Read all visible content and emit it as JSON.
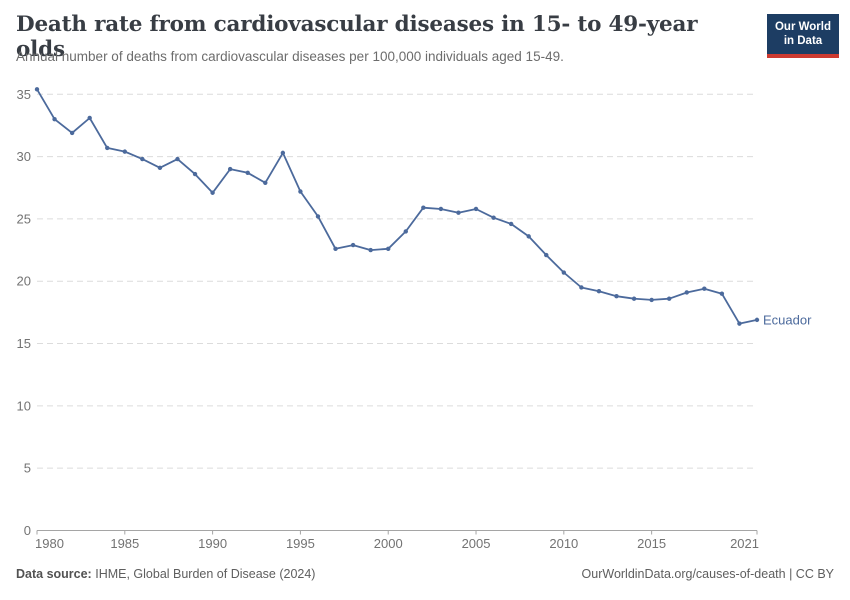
{
  "header": {
    "title": "Death rate from cardiovascular diseases in 15- to 49-year olds",
    "subtitle": "Annual number of deaths from cardiovascular diseases per 100,000 individuals aged 15-49."
  },
  "logo": {
    "line1": "Our World",
    "line2": "in Data",
    "bg_color": "#1d3d63",
    "accent_color": "#cd3a30"
  },
  "chart_data": {
    "type": "line",
    "title": "Death rate from cardiovascular diseases in 15- to 49-year olds",
    "xlabel": "",
    "ylabel": "",
    "xlim": [
      1980,
      2021
    ],
    "ylim": [
      0,
      35
    ],
    "x_ticks": [
      1980,
      1985,
      1990,
      1995,
      2000,
      2005,
      2010,
      2015,
      2021
    ],
    "y_ticks": [
      0,
      5,
      10,
      15,
      20,
      25,
      30,
      35
    ],
    "grid": "horizontal-dashed",
    "legend_position": "end-of-line",
    "x": [
      1980,
      1981,
      1982,
      1983,
      1984,
      1985,
      1986,
      1987,
      1988,
      1989,
      1990,
      1991,
      1992,
      1993,
      1994,
      1995,
      1996,
      1997,
      1998,
      1999,
      2000,
      2001,
      2002,
      2003,
      2004,
      2005,
      2006,
      2007,
      2008,
      2009,
      2010,
      2011,
      2012,
      2013,
      2014,
      2015,
      2016,
      2017,
      2018,
      2019,
      2020,
      2021
    ],
    "series": [
      {
        "name": "Ecuador",
        "color": "#4C6A9C",
        "values": [
          35.4,
          33.0,
          31.9,
          33.1,
          30.7,
          30.4,
          29.8,
          29.1,
          29.8,
          28.6,
          27.1,
          29.0,
          28.7,
          27.9,
          30.3,
          27.2,
          25.2,
          22.6,
          22.9,
          22.5,
          22.6,
          24.0,
          25.9,
          25.8,
          25.5,
          25.8,
          25.1,
          24.6,
          23.6,
          22.1,
          20.7,
          19.5,
          19.2,
          18.8,
          18.6,
          18.5,
          18.6,
          19.1,
          19.4,
          19.0,
          16.6,
          16.9
        ]
      }
    ],
    "colors": {
      "gridline": "#dcdcdc",
      "axis": "#a5a5a5",
      "tick_label": "#737373"
    }
  },
  "footer": {
    "source_label": "Data source:",
    "source_text": "IHME, Global Burden of Disease (2024)",
    "link": "OurWorldinData.org/causes-of-death",
    "divider": "|",
    "license": "CC BY"
  }
}
